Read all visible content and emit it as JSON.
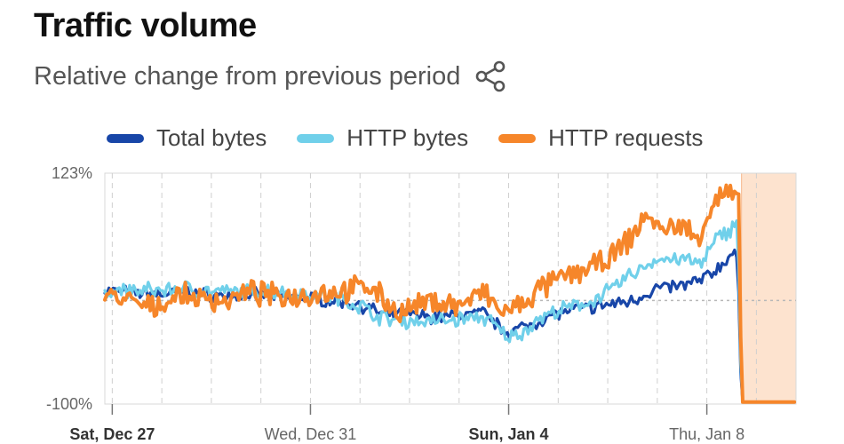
{
  "header": {
    "title": "Traffic volume",
    "subtitle": "Relative change from previous period"
  },
  "icons": {
    "share": "share-icon"
  },
  "chart_data": {
    "type": "line",
    "ylim": [
      -100,
      123
    ],
    "y_tick_labels": [
      "123%",
      "-100%"
    ],
    "x_tick_labels": [
      {
        "label": "Sat, Dec 27",
        "day": 0,
        "bold": true
      },
      {
        "label": "Wed, Dec 31",
        "day": 4,
        "bold": false
      },
      {
        "label": "Sun, Jan 4",
        "day": 8,
        "bold": true
      },
      {
        "label": "Thu, Jan 8",
        "day": 12,
        "bold": false
      }
    ],
    "x_range_days": [
      -0.15,
      13.8
    ],
    "baseline": 0,
    "highlight_range_days": [
      12.7,
      13.8
    ],
    "series": [
      {
        "name": "Total bytes",
        "color": "#1846a8",
        "points": [
          [
            -0.15,
            10
          ],
          [
            0.3,
            8
          ],
          [
            1,
            6
          ],
          [
            1.5,
            8
          ],
          [
            2,
            5
          ],
          [
            2.5,
            4
          ],
          [
            3,
            6
          ],
          [
            3.5,
            4
          ],
          [
            4,
            2
          ],
          [
            4.5,
            0
          ],
          [
            5,
            -4
          ],
          [
            5.5,
            -14
          ],
          [
            6,
            -14
          ],
          [
            6.5,
            -16
          ],
          [
            7,
            -14
          ],
          [
            7.5,
            -12
          ],
          [
            7.8,
            -25
          ],
          [
            8,
            -30
          ],
          [
            8.3,
            -26
          ],
          [
            8.6,
            -20
          ],
          [
            9,
            -12
          ],
          [
            9.5,
            -8
          ],
          [
            10,
            -4
          ],
          [
            10.5,
            0
          ],
          [
            11,
            12
          ],
          [
            11.5,
            14
          ],
          [
            11.9,
            20
          ],
          [
            12.2,
            30
          ],
          [
            12.5,
            45
          ],
          [
            12.62,
            40
          ],
          [
            12.7,
            -98
          ],
          [
            13.8,
            -98
          ]
        ]
      },
      {
        "name": "HTTP bytes",
        "color": "#70d0ea",
        "points": [
          [
            -0.15,
            10
          ],
          [
            0.3,
            9
          ],
          [
            1,
            10
          ],
          [
            1.5,
            12
          ],
          [
            2,
            8
          ],
          [
            2.5,
            8
          ],
          [
            3,
            10
          ],
          [
            3.5,
            8
          ],
          [
            4,
            6
          ],
          [
            4.5,
            3
          ],
          [
            5,
            -5
          ],
          [
            5.5,
            -18
          ],
          [
            6,
            -20
          ],
          [
            6.5,
            -20
          ],
          [
            7,
            -18
          ],
          [
            7.5,
            -16
          ],
          [
            7.8,
            -28
          ],
          [
            8,
            -36
          ],
          [
            8.3,
            -30
          ],
          [
            8.6,
            -18
          ],
          [
            9,
            -10
          ],
          [
            9.5,
            -4
          ],
          [
            10,
            8
          ],
          [
            10.5,
            26
          ],
          [
            11,
            40
          ],
          [
            11.5,
            40
          ],
          [
            11.9,
            35
          ],
          [
            12.2,
            60
          ],
          [
            12.5,
            70
          ],
          [
            12.62,
            80
          ],
          [
            12.7,
            -98
          ],
          [
            13.8,
            -98
          ]
        ]
      },
      {
        "name": "HTTP requests",
        "color": "#f6862a",
        "points": [
          [
            -0.15,
            5
          ],
          [
            0.3,
            0
          ],
          [
            0.8,
            -8
          ],
          [
            1.3,
            5
          ],
          [
            1.8,
            2
          ],
          [
            2.3,
            0
          ],
          [
            2.8,
            8
          ],
          [
            3.3,
            4
          ],
          [
            3.8,
            5
          ],
          [
            4.3,
            8
          ],
          [
            4.8,
            10
          ],
          [
            5.2,
            15
          ],
          [
            5.5,
            0
          ],
          [
            5.8,
            -12
          ],
          [
            6.2,
            -5
          ],
          [
            6.5,
            0
          ],
          [
            7,
            -5
          ],
          [
            7.5,
            8
          ],
          [
            7.8,
            -10
          ],
          [
            8,
            -10
          ],
          [
            8.3,
            -4
          ],
          [
            8.6,
            10
          ],
          [
            9,
            20
          ],
          [
            9.5,
            30
          ],
          [
            10,
            38
          ],
          [
            10.5,
            62
          ],
          [
            10.8,
            85
          ],
          [
            11.1,
            65
          ],
          [
            11.4,
            75
          ],
          [
            11.8,
            60
          ],
          [
            12.1,
            90
          ],
          [
            12.35,
            105
          ],
          [
            12.55,
            100
          ],
          [
            12.65,
            90
          ],
          [
            12.7,
            -98
          ],
          [
            13.8,
            -98
          ]
        ]
      }
    ]
  }
}
